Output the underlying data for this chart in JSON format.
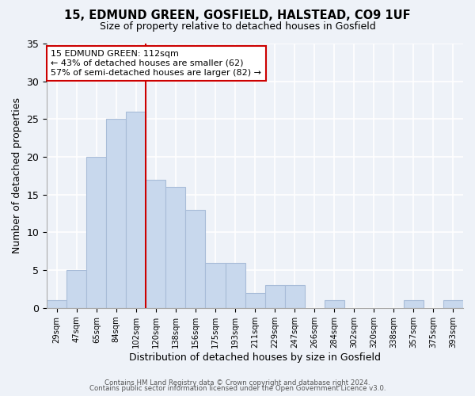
{
  "title": "15, EDMUND GREEN, GOSFIELD, HALSTEAD, CO9 1UF",
  "subtitle": "Size of property relative to detached houses in Gosfield",
  "xlabel": "Distribution of detached houses by size in Gosfield",
  "ylabel": "Number of detached properties",
  "bin_labels": [
    "29sqm",
    "47sqm",
    "65sqm",
    "84sqm",
    "102sqm",
    "120sqm",
    "138sqm",
    "156sqm",
    "175sqm",
    "193sqm",
    "211sqm",
    "229sqm",
    "247sqm",
    "266sqm",
    "284sqm",
    "302sqm",
    "320sqm",
    "338sqm",
    "357sqm",
    "375sqm",
    "393sqm"
  ],
  "bar_heights": [
    1,
    5,
    20,
    25,
    26,
    17,
    16,
    13,
    6,
    6,
    2,
    3,
    3,
    0,
    1,
    0,
    0,
    0,
    1,
    0,
    1
  ],
  "bar_color": "#c8d8ed",
  "bar_edgecolor": "#a8bcd8",
  "vline_color": "#cc0000",
  "annotation_text": "15 EDMUND GREEN: 112sqm\n← 43% of detached houses are smaller (62)\n57% of semi-detached houses are larger (82) →",
  "annotation_box_edgecolor": "#cc0000",
  "ylim": [
    0,
    35
  ],
  "yticks": [
    0,
    5,
    10,
    15,
    20,
    25,
    30,
    35
  ],
  "footer1": "Contains HM Land Registry data © Crown copyright and database right 2024.",
  "footer2": "Contains public sector information licensed under the Open Government Licence v3.0.",
  "bg_color": "#eef2f8",
  "grid_color": "#d0d8e8"
}
